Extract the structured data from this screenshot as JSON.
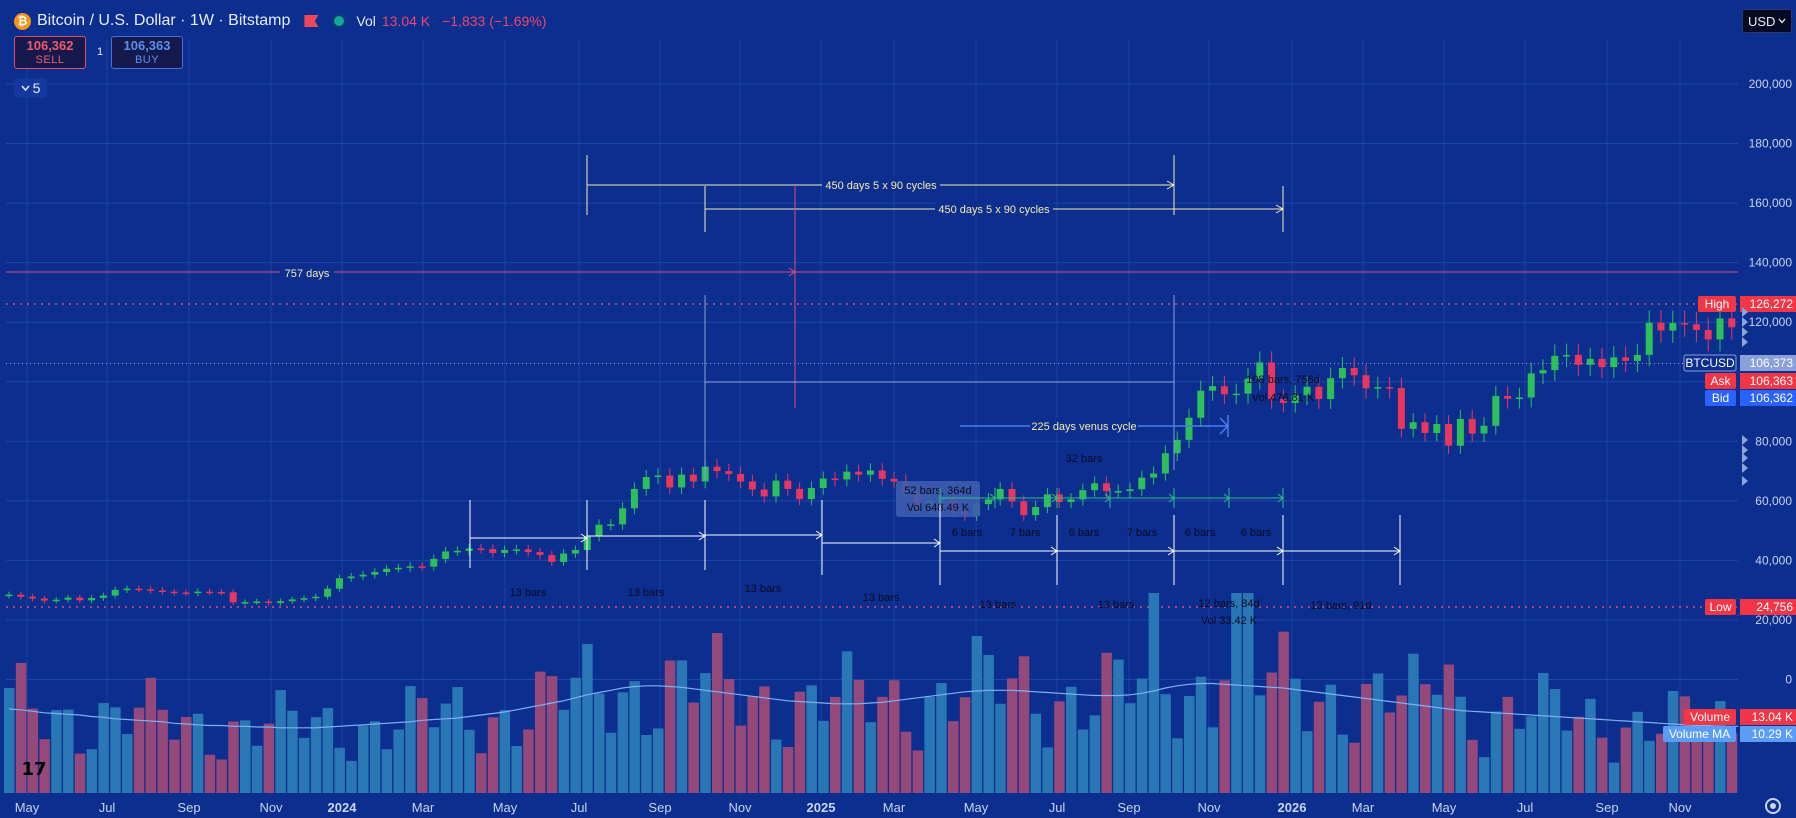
{
  "legend": {
    "symbol_icon": "bitcoin-icon",
    "title": "Bitcoin / U.S. Dollar · 1W · Bitstamp",
    "vol_label": "Vol",
    "vol_value": "13.04 K",
    "change": "−1,833 (−1.69%)"
  },
  "trading": {
    "sell_price": "106,362",
    "sell_label": "SELL",
    "buy_price": "106,363",
    "buy_label": "BUY",
    "quantity": "1"
  },
  "indicators_collapse": {
    "count": "5"
  },
  "currency": {
    "selected": "USD"
  },
  "price_axis": {
    "ticks": [
      "200,000",
      "180,000",
      "160,000",
      "140,000",
      "120,000",
      "100,000",
      "80,000",
      "60,000",
      "40,000",
      "20,000",
      "0"
    ],
    "labels": [
      {
        "name": "High",
        "value": "126,272",
        "color": "#f23645"
      },
      {
        "name": "BTCUSD",
        "value": "106,373",
        "color": "#8aa0d8"
      },
      {
        "name": "Ask",
        "value": "106,363",
        "color": "#f23645"
      },
      {
        "name": "Bid",
        "value": "106,362",
        "color": "#2962ff"
      },
      {
        "name": "Low",
        "value": "24,756",
        "color": "#f23645"
      },
      {
        "name": "Volume",
        "value": "13.04 K",
        "color": "#f23645"
      },
      {
        "name": "Volume MA",
        "value": "10.29 K",
        "color": "#5b9cf6"
      }
    ]
  },
  "time_axis": {
    "labels": [
      "May",
      "Jul",
      "Sep",
      "Nov",
      "2024",
      "Mar",
      "May",
      "Jul",
      "Sep",
      "Nov",
      "2025",
      "Mar",
      "May",
      "Jul",
      "Sep",
      "Nov",
      "2026",
      "Mar",
      "May",
      "Jul",
      "Sep",
      "Nov"
    ]
  },
  "annotations": {
    "cycle_top": "450 days 5 x 90 cycles",
    "cycle_second": "450 days 5 x 90 cycles",
    "days_757": "757 days",
    "range_measure": "108 bars, 756d",
    "range_vol": "Vol 476.81 K",
    "venus_cycle": "225 days venus cycle",
    "venus_bars": "32 bars",
    "tooltip_bars": "52 bars, 364d",
    "tooltip_vol": "Vol 648.49 K",
    "six_bars": "6 bars",
    "seven_bars": "7 bars",
    "thirteen_bars": "13 bars",
    "twelve_bars": "12 bars, 84d",
    "twelve_vol": "Vol 33.42 K",
    "thirteen_91": "13 bars, 91d"
  },
  "chart_data": {
    "type": "candlestick",
    "symbol": "BTCUSD",
    "interval": "1W",
    "ylim": [
      0,
      210000
    ],
    "grid": true,
    "high_value": 126272,
    "last_value": 106373,
    "ask": 106363,
    "bid": 106362,
    "low_value": 24756,
    "closes": [
      28500,
      27800,
      27200,
      26500,
      26800,
      27500,
      26600,
      27400,
      28200,
      30100,
      30500,
      30300,
      29900,
      29500,
      29200,
      29000,
      29500,
      29400,
      29300,
      25900,
      26000,
      26200,
      25700,
      26300,
      26900,
      27300,
      27800,
      30500,
      34000,
      34600,
      35200,
      36100,
      37200,
      37500,
      38000,
      37900,
      40500,
      43000,
      43200,
      44000,
      43800,
      42500,
      43500,
      43700,
      42800,
      41800,
      39500,
      42300,
      43500,
      48000,
      52000,
      52100,
      57500,
      64000,
      68000,
      68500,
      64500,
      68800,
      66500,
      71500,
      70000,
      69000,
      66500,
      63800,
      61500,
      66800,
      64000,
      60600,
      64300,
      67500,
      67200,
      69800,
      68800,
      70200,
      67400,
      66500,
      62800,
      57800,
      60200,
      61200,
      56500,
      55200,
      58900,
      60500,
      64000,
      59800,
      55200,
      57900,
      62200,
      59600,
      60500,
      63600,
      65900,
      63300,
      63300,
      63900,
      67800,
      69200,
      76000,
      80500,
      87900,
      97000,
      98500,
      95800,
      96000,
      101000,
      106500,
      94200,
      92900,
      95500,
      98300,
      94200,
      101200,
      104600,
      102200,
      97800,
      98200,
      97900,
      84200,
      86400,
      82800,
      85800,
      78500,
      87500,
      82600,
      85200,
      95200,
      94300,
      94700,
      102800,
      103900,
      108700,
      109000,
      105700,
      107700,
      104900,
      108200,
      107000,
      109000,
      119800,
      117200,
      119700,
      119300,
      117400,
      114200,
      121300,
      118300,
      114900,
      111200,
      110700,
      115800,
      115100,
      109700,
      114100,
      122000,
      111100,
      106373
    ],
    "volume_ma": [
      11200,
      11100,
      10900,
      10700,
      10600,
      10500,
      10400,
      10200,
      10100,
      9900,
      9800,
      9700,
      9600,
      9500,
      9300,
      9200,
      9100,
      9000,
      9000,
      8900,
      8900,
      8800,
      8800,
      8700,
      8700,
      8700,
      8700,
      8800,
      8900,
      9000,
      9100,
      9200,
      9300,
      9400,
      9500,
      9700,
      9800,
      9900,
      10000,
      10200,
      10400,
      10600,
      10800,
      11100,
      11400,
      11700,
      12000,
      12300,
      12700,
      13100,
      13400,
      13700,
      14000,
      14200,
      14300,
      14300,
      14200,
      14100,
      13900,
      13700,
      13500,
      13300,
      13100,
      12900,
      12700,
      12500,
      12300,
      12200,
      12100,
      12000,
      11900,
      11900,
      11900,
      12000,
      12100,
      12300,
      12500,
      12700,
      12900,
      13100,
      13300,
      13500,
      13600,
      13700,
      13700,
      13700,
      13600,
      13500,
      13400,
      13300,
      13200,
      13100,
      13000,
      13000,
      13000,
      13100,
      13300,
      13600,
      14000,
      14300,
      14500,
      14600,
      14600,
      14500,
      14400,
      14300,
      14200,
      14100,
      14000,
      13800,
      13600,
      13400,
      13200,
      13000,
      12800,
      12600,
      12400,
      12200,
      12000,
      11800,
      11600,
      11400,
      11200,
      11000,
      10900,
      10800,
      10700,
      10600,
      10500,
      10400,
      10300,
      10200,
      10100,
      10000,
      9900,
      9800,
      9700,
      9600,
      9500,
      9400,
      9300,
      9200,
      9100,
      9000,
      9000,
      8900,
      8900,
      8900,
      8900,
      9000,
      9000,
      9100,
      9200,
      9400,
      9600,
      9900,
      10290
    ]
  }
}
